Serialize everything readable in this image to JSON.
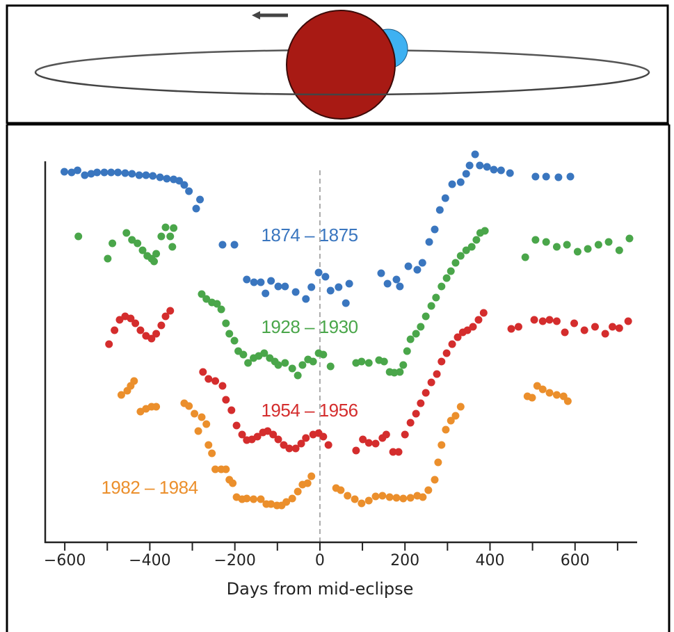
{
  "chart_data": {
    "type": "scatter",
    "xlabel": "Days from mid-eclipse",
    "xlim": [
      -646,
      746
    ],
    "ylim": [
      0,
      560
    ],
    "xticks": [
      {
        "value": -600,
        "label": "−600"
      },
      {
        "value": -400,
        "label": "−400"
      },
      {
        "value": -200,
        "label": "−200"
      },
      0,
      200,
      400,
      600
    ],
    "xminorticks": [
      -500,
      -300,
      -100,
      100,
      300,
      500,
      700
    ],
    "reference_line_x": 0,
    "series": [
      {
        "name": "1874 – 1875",
        "color": "#3a76bf",
        "x": [
          -601,
          -584,
          -570,
          -553,
          -538,
          -524,
          -507,
          -491,
          -475,
          -458,
          -442,
          -425,
          -409,
          -393,
          -376,
          -360,
          -344,
          -331,
          -319,
          -308,
          -291,
          -282,
          -229,
          -201,
          -172,
          -155,
          -139,
          -128,
          -115,
          -98,
          -82,
          -57,
          -33,
          -20,
          -3,
          13,
          25,
          44,
          61,
          69,
          144,
          159,
          180,
          188,
          208,
          229,
          241,
          257,
          270,
          282,
          295,
          311,
          331,
          344,
          352,
          365,
          376,
          393,
          409,
          426,
          447,
          507,
          532,
          561,
          589
        ],
        "values": [
          533,
          532,
          535,
          528,
          530,
          532,
          532,
          532,
          532,
          531,
          530,
          528,
          528,
          527,
          525,
          523,
          522,
          520,
          514,
          505,
          480,
          493,
          428,
          428,
          378,
          374,
          374,
          358,
          376,
          368,
          368,
          360,
          350,
          367,
          388,
          382,
          362,
          367,
          344,
          372,
          387,
          372,
          378,
          368,
          397,
          392,
          402,
          432,
          450,
          478,
          495,
          515,
          518,
          530,
          542,
          558,
          542,
          540,
          536,
          535,
          531,
          526,
          526,
          525,
          526
        ]
      },
      {
        "name": "1928 – 1930",
        "color": "#4aa64a",
        "x": [
          -568,
          -499,
          -488,
          -455,
          -442,
          -429,
          -417,
          -406,
          -396,
          -390,
          -385,
          -373,
          -363,
          -352,
          -347,
          -344,
          -278,
          -267,
          -254,
          -242,
          -232,
          -221,
          -213,
          -201,
          -192,
          -180,
          -169,
          -156,
          -144,
          -131,
          -118,
          -106,
          -98,
          -82,
          -65,
          -52,
          -41,
          -28,
          -16,
          -3,
          8,
          25,
          85,
          98,
          115,
          139,
          151,
          164,
          175,
          188,
          196,
          205,
          213,
          226,
          237,
          249,
          262,
          273,
          286,
          298,
          308,
          319,
          331,
          344,
          357,
          368,
          377,
          388,
          483,
          507,
          532,
          557,
          581,
          606,
          630,
          655,
          679,
          704,
          728
        ],
        "values": [
          440,
          408,
          430,
          445,
          435,
          430,
          420,
          412,
          408,
          404,
          415,
          440,
          453,
          440,
          425,
          452,
          357,
          350,
          345,
          343,
          335,
          315,
          300,
          290,
          275,
          270,
          258,
          265,
          268,
          272,
          265,
          260,
          255,
          258,
          250,
          240,
          255,
          263,
          260,
          272,
          270,
          253,
          258,
          260,
          258,
          262,
          260,
          245,
          244,
          245,
          255,
          275,
          292,
          300,
          310,
          325,
          340,
          352,
          368,
          380,
          390,
          402,
          412,
          420,
          425,
          435,
          445,
          448,
          410,
          435,
          432,
          425,
          428,
          418,
          422,
          428,
          432,
          420,
          437
        ]
      },
      {
        "name": "1954 – 1956",
        "color": "#d42d2d",
        "x": [
          -496,
          -483,
          -471,
          -458,
          -445,
          -434,
          -422,
          -409,
          -396,
          -385,
          -373,
          -363,
          -352,
          -275,
          -262,
          -246,
          -229,
          -221,
          -208,
          -196,
          -183,
          -172,
          -160,
          -147,
          -134,
          -123,
          -110,
          -98,
          -85,
          -72,
          -57,
          -44,
          -33,
          -16,
          -3,
          8,
          20,
          85,
          101,
          115,
          131,
          147,
          156,
          172,
          185,
          200,
          213,
          226,
          237,
          249,
          262,
          275,
          286,
          298,
          311,
          324,
          336,
          347,
          360,
          373,
          385,
          450,
          467,
          504,
          524,
          540,
          557,
          576,
          598,
          622,
          647,
          671,
          688,
          704,
          725
        ],
        "values": [
          285,
          305,
          320,
          325,
          322,
          315,
          305,
          297,
          293,
          300,
          312,
          325,
          333,
          245,
          235,
          232,
          225,
          205,
          190,
          168,
          155,
          147,
          148,
          152,
          158,
          160,
          155,
          148,
          140,
          135,
          135,
          142,
          150,
          155,
          157,
          152,
          140,
          132,
          148,
          143,
          142,
          150,
          155,
          130,
          130,
          155,
          172,
          185,
          200,
          215,
          230,
          242,
          260,
          272,
          285,
          295,
          302,
          305,
          310,
          320,
          330,
          307,
          310,
          320,
          318,
          320,
          318,
          302,
          315,
          305,
          310,
          300,
          310,
          308,
          318
        ]
      },
      {
        "name": "1982 – 1984",
        "color": "#eb8f2c",
        "x": [
          -467,
          -453,
          -445,
          -437,
          -422,
          -409,
          -396,
          -385,
          -319,
          -308,
          -295,
          -286,
          -278,
          -267,
          -262,
          -254,
          -246,
          -232,
          -221,
          -213,
          -205,
          -196,
          -183,
          -172,
          -156,
          -139,
          -126,
          -115,
          -101,
          -90,
          -79,
          -65,
          -52,
          -41,
          -29,
          -20,
          38,
          49,
          65,
          82,
          98,
          115,
          131,
          147,
          164,
          180,
          196,
          213,
          229,
          242,
          255,
          270,
          278,
          286,
          296,
          308,
          319,
          331,
          488,
          499,
          511,
          524,
          540,
          557,
          573,
          583
        ],
        "values": [
          212,
          218,
          225,
          232,
          188,
          192,
          195,
          195,
          200,
          196,
          185,
          160,
          180,
          170,
          140,
          128,
          105,
          105,
          105,
          90,
          85,
          65,
          62,
          63,
          62,
          62,
          55,
          55,
          53,
          53,
          58,
          63,
          73,
          83,
          85,
          95,
          78,
          75,
          67,
          62,
          56,
          60,
          66,
          67,
          65,
          64,
          63,
          64,
          67,
          65,
          75,
          90,
          115,
          140,
          162,
          175,
          182,
          195,
          210,
          208,
          225,
          220,
          215,
          212,
          210,
          203
        ]
      }
    ]
  }
}
